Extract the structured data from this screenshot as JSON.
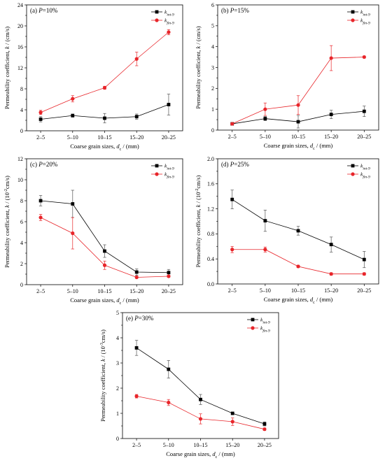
{
  "chart_data": [
    {
      "type": "line",
      "title": "(a) P=10%",
      "xlabel": "Coarse grain sizes, dc / (mm)",
      "ylabel": "Permeability coefficient, k / (cm/s)",
      "categories": [
        "2–5",
        "5–10",
        "10–15",
        "15–20",
        "20–25"
      ],
      "ylim": [
        0,
        24
      ],
      "yticks": [
        0,
        4,
        8,
        12,
        16,
        20,
        24
      ],
      "legend_position": "top-right",
      "series": [
        {
          "name": "kint-9",
          "color": "#000000",
          "marker": "square",
          "values": [
            2.2,
            2.9,
            2.4,
            2.7,
            5.0
          ],
          "errors": [
            0.5,
            0.3,
            0.9,
            0.5,
            2.0
          ]
        },
        {
          "name": "kfin-9",
          "color": "#e8252a",
          "marker": "circle",
          "values": [
            3.5,
            6.1,
            8.2,
            13.7,
            18.8
          ],
          "errors": [
            0.4,
            0.6,
            0.3,
            1.3,
            0.5
          ]
        }
      ]
    },
    {
      "type": "line",
      "title": "(b) P=15%",
      "xlabel": "Coarse grain sizes, dc / (mm)",
      "ylabel": "Permeability coefficient, k / (cm/s)",
      "categories": [
        "2–5",
        "5–10",
        "10–15",
        "15–20",
        "20–25"
      ],
      "ylim": [
        0,
        6
      ],
      "yticks": [
        0,
        1,
        2,
        3,
        4,
        5,
        6
      ],
      "legend_position": "top-right",
      "series": [
        {
          "name": "kint-9",
          "color": "#000000",
          "marker": "square",
          "values": [
            0.3,
            0.55,
            0.4,
            0.75,
            0.9
          ],
          "errors": [
            0.05,
            0.1,
            0.3,
            0.2,
            0.25
          ]
        },
        {
          "name": "kfin-9",
          "color": "#e8252a",
          "marker": "circle",
          "values": [
            0.3,
            1.0,
            1.2,
            3.45,
            3.5
          ],
          "errors": [
            0.05,
            0.3,
            0.45,
            0.6,
            0.05
          ]
        }
      ]
    },
    {
      "type": "line",
      "title": "(c) P=20%",
      "xlabel": "Coarse grain sizes, dc / (mm)",
      "ylabel": "Permeability coefficient, k / (10-2cm/s)",
      "categories": [
        "2–5",
        "5–10",
        "10–15",
        "15–20",
        "20–25"
      ],
      "ylim": [
        0,
        12
      ],
      "yticks": [
        0,
        2,
        4,
        6,
        8,
        10,
        12
      ],
      "legend_position": "top-right",
      "series": [
        {
          "name": "kint-9",
          "color": "#000000",
          "marker": "square",
          "values": [
            8.0,
            7.7,
            3.2,
            1.2,
            1.15
          ],
          "errors": [
            0.5,
            1.3,
            0.6,
            0.3,
            0.3
          ]
        },
        {
          "name": "kfin-9",
          "color": "#e8252a",
          "marker": "circle",
          "values": [
            6.4,
            4.9,
            1.85,
            0.7,
            0.8
          ],
          "errors": [
            0.3,
            1.5,
            0.4,
            0.1,
            0.1
          ]
        }
      ]
    },
    {
      "type": "line",
      "title": "(d) P=25%",
      "xlabel": "Coarse grain sizes, dc / (mm)",
      "ylabel": "Permeability coefficient, k / (10-2cm/s)",
      "categories": [
        "2–5",
        "5–10",
        "10–15",
        "15–20",
        "20–25"
      ],
      "ylim": [
        0,
        2.0
      ],
      "yticks": [
        0,
        0.4,
        0.8,
        1.2,
        1.6,
        2.0
      ],
      "ytick_labels": [
        "0.0",
        "0.4",
        "0.8",
        "1.2",
        "1.6",
        "2.0"
      ],
      "legend_position": "top-right",
      "series": [
        {
          "name": "kint-9",
          "color": "#000000",
          "marker": "square",
          "values": [
            1.35,
            1.01,
            0.85,
            0.63,
            0.39
          ],
          "errors": [
            0.15,
            0.17,
            0.07,
            0.12,
            0.13
          ]
        },
        {
          "name": "kfin-9",
          "color": "#e8252a",
          "marker": "circle",
          "values": [
            0.55,
            0.55,
            0.28,
            0.16,
            0.16
          ],
          "errors": [
            0.05,
            0.04,
            0.02,
            0.02,
            0.02
          ]
        }
      ]
    },
    {
      "type": "line",
      "title": "(e) P=30%",
      "xlabel": "Coarse grain sizes, dc / (mm)",
      "ylabel": "Permeability coefficient, k / (10-3cm/s)",
      "categories": [
        "2–5",
        "5–10",
        "10–15",
        "15–20",
        "20–25"
      ],
      "ylim": [
        0,
        5
      ],
      "yticks": [
        0,
        1,
        2,
        3,
        4,
        5
      ],
      "legend_position": "top-right",
      "series": [
        {
          "name": "kint-9",
          "color": "#000000",
          "marker": "square",
          "values": [
            3.6,
            2.75,
            1.55,
            1.0,
            0.58
          ],
          "errors": [
            0.3,
            0.35,
            0.2,
            0.05,
            0.08
          ]
        },
        {
          "name": "kfin-9",
          "color": "#e8252a",
          "marker": "circle",
          "values": [
            1.68,
            1.43,
            0.78,
            0.67,
            0.37
          ],
          "errors": [
            0.07,
            0.12,
            0.2,
            0.15,
            0.05
          ]
        }
      ]
    }
  ]
}
